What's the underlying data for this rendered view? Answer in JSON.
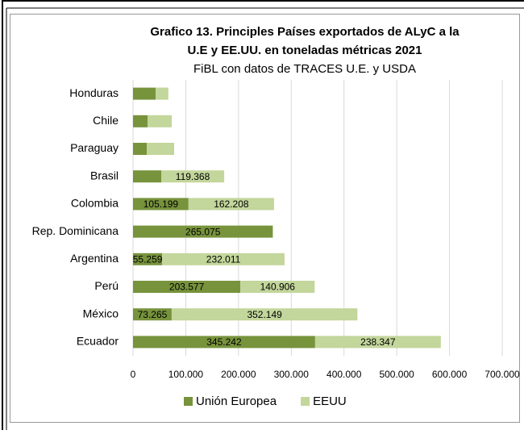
{
  "chart_data": {
    "type": "bar",
    "orientation": "horizontal",
    "stacked": true,
    "title": [
      "Grafico 13. Principles Países exportados de ALyC a la",
      "U.E y EE.UU. en toneladas métricas 2021"
    ],
    "subtitle": "FiBL con datos de TRACES U.E. y USDA",
    "categories": [
      "Honduras",
      "Chile",
      "Paraguay",
      "Brasil",
      "Colombia",
      "Rep. Dominicana",
      "Argentina",
      "Perú",
      "México",
      "Ecuador"
    ],
    "series": [
      {
        "name": "Unión Europea",
        "color": "#77933c",
        "values": [
          43000,
          27500,
          26000,
          53500,
          105199,
          265075,
          55259,
          203577,
          73265,
          345242
        ],
        "value_labels": [
          null,
          null,
          null,
          null,
          "105.199",
          "265.075",
          "55.259",
          "203.577",
          "73.265",
          "345.242"
        ]
      },
      {
        "name": "EEUU",
        "color": "#c3d69b",
        "values": [
          24000,
          46000,
          52000,
          119368,
          162208,
          null,
          232011,
          140906,
          352149,
          238347
        ],
        "value_labels": [
          null,
          null,
          null,
          "119.368",
          "162.208",
          null,
          "232.011",
          "140.906",
          "352.149",
          "238.347"
        ]
      }
    ],
    "xlim": [
      0,
      700000
    ],
    "xticks": [
      0,
      {
        "value": 100000,
        "label": "100.000"
      },
      {
        "value": 200000,
        "label": "200.000"
      },
      {
        "value": 300000,
        "label": "300.000"
      },
      {
        "value": 400000,
        "label": "400.000"
      },
      {
        "value": 500000,
        "label": "500.000"
      },
      {
        "value": 600000,
        "label": "600.000"
      },
      {
        "value": 700000,
        "label": "700.000"
      }
    ],
    "grid": true,
    "legend": "bottom"
  }
}
